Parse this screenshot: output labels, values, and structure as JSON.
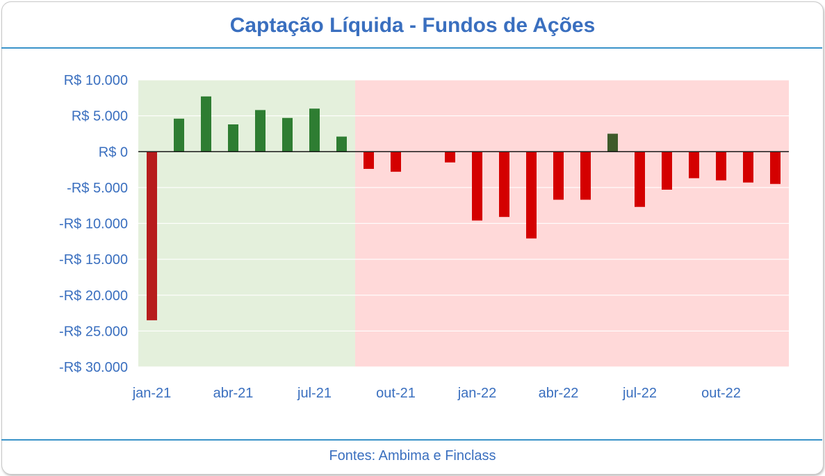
{
  "header": {
    "title": "Captação Líquida - Fundos de Ações"
  },
  "footer": {
    "source": "Fontes: Ambima e Finclass"
  },
  "colors": {
    "positive": "#2e7d32",
    "negative_2021": "#b71c1c",
    "negative_2022": "#d40000",
    "positive_2022": "#3e5a2a",
    "bg_green": "#e4f0dc",
    "bg_red": "#ffd9d9",
    "axis_text": "#3a6fbf"
  },
  "chart_data": {
    "type": "bar",
    "title": "Captação Líquida - Fundos de Ações",
    "xlabel": "",
    "ylabel": "",
    "ylim": [
      -30000,
      10000
    ],
    "y_ticks": [
      10000,
      5000,
      0,
      -5000,
      -10000,
      -15000,
      -20000,
      -25000,
      -30000
    ],
    "y_tick_labels": [
      "R$ 10.000",
      "R$ 5.000",
      "R$ 0",
      "-R$ 5.000",
      "-R$ 10.000",
      "-R$ 15.000",
      "-R$ 20.000",
      "-R$ 25.000",
      "-R$ 30.000"
    ],
    "categories": [
      "jan-21",
      "fev-21",
      "mar-21",
      "abr-21",
      "mai-21",
      "jun-21",
      "jul-21",
      "ago-21",
      "set-21",
      "out-21",
      "nov-21",
      "dez-21",
      "jan-22",
      "fev-22",
      "mar-22",
      "abr-22",
      "mai-22",
      "jun-22",
      "jul-22",
      "ago-22",
      "set-22",
      "out-22",
      "nov-22",
      "dez-22"
    ],
    "x_tick_labels": [
      {
        "category_index": 0,
        "label": "jan-21"
      },
      {
        "category_index": 3,
        "label": "abr-21"
      },
      {
        "category_index": 6,
        "label": "jul-21"
      },
      {
        "category_index": 9,
        "label": "out-21"
      },
      {
        "category_index": 12,
        "label": "jan-22"
      },
      {
        "category_index": 15,
        "label": "abr-22"
      },
      {
        "category_index": 18,
        "label": "jul-22"
      },
      {
        "category_index": 21,
        "label": "out-22"
      }
    ],
    "values": [
      -23500,
      4600,
      7700,
      3800,
      5800,
      4700,
      6000,
      2100,
      -2400,
      -2800,
      0,
      -1500,
      -9600,
      -9100,
      -12100,
      -6700,
      -6700,
      2500,
      -7700,
      -5300,
      -3700,
      -4000,
      -4300,
      -4500
    ],
    "shaded_regions": [
      {
        "from": "jan-21",
        "to": "ago-21",
        "color": "#e4f0dc"
      },
      {
        "from": "set-21",
        "to": "dez-22",
        "color": "#ffd9d9"
      }
    ],
    "grid": true,
    "legend": "none"
  }
}
